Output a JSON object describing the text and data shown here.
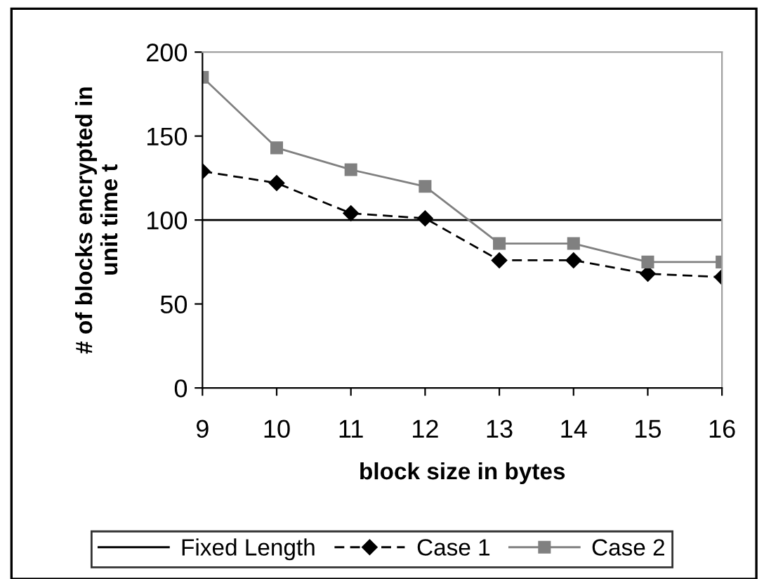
{
  "chart_data": {
    "type": "line",
    "xlabel": "block size in bytes",
    "ylabel": "# of blocks encrypted in\nunit time t",
    "categories": [
      "9",
      "10",
      "11",
      "12",
      "13",
      "14",
      "15",
      "16"
    ],
    "series": [
      {
        "name": "Fixed Length",
        "color": "#000000",
        "values": [
          100,
          100,
          100,
          100,
          100,
          100,
          100,
          100
        ],
        "marker": "none",
        "line_style": "solid"
      },
      {
        "name": "Case 1",
        "color": "#000000",
        "values": [
          129,
          122,
          104,
          101,
          76,
          76,
          68,
          66
        ],
        "marker": "diamond",
        "line_style": "dashed"
      },
      {
        "name": "Case 2",
        "color": "#808080",
        "values": [
          185,
          143,
          130,
          120,
          86,
          86,
          75,
          75
        ],
        "marker": "square",
        "line_style": "solid"
      }
    ],
    "ylim": [
      0,
      200
    ],
    "yticks": [
      0,
      50,
      100,
      150,
      200
    ],
    "grid": false,
    "legend": "bottom"
  }
}
